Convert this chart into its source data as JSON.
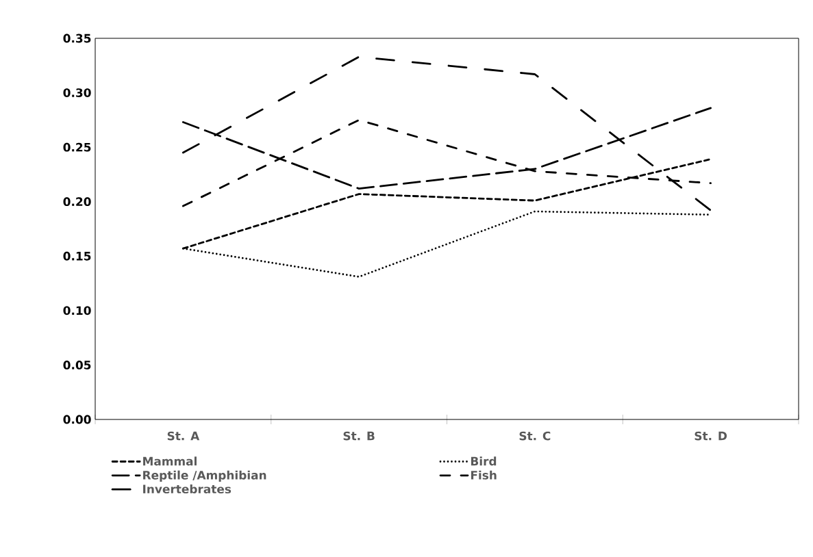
{
  "chart_data": {
    "type": "line",
    "categories": [
      "St. A",
      "St. B",
      "St. C",
      "St. D"
    ],
    "series": [
      {
        "name": "Mammal",
        "color": "#000000",
        "line_style": "dashed",
        "values": [
          0.157,
          0.207,
          0.201,
          0.239
        ]
      },
      {
        "name": "Bird",
        "color": "#000000",
        "line_style": "dotted",
        "values": [
          0.157,
          0.131,
          0.191,
          0.188
        ]
      },
      {
        "name": "Reptile /Amphibian",
        "color": "#000000",
        "line_style": "long dash",
        "values": [
          0.273,
          0.212,
          0.23,
          0.286
        ]
      },
      {
        "name": "Fish",
        "color": "#000000",
        "line_style": "dash dot",
        "values": [
          0.196,
          0.275,
          0.228,
          0.217
        ]
      },
      {
        "name": "Invertebrates",
        "color": "#000000",
        "line_style": "long dash dot dot",
        "values": [
          0.245,
          0.333,
          0.317,
          0.192
        ]
      }
    ],
    "ylim": [
      0,
      0.35
    ],
    "yticks": [
      {
        "value": 0,
        "label": "0.00"
      },
      {
        "value": 0.05,
        "label": "0.05"
      },
      {
        "value": 0.1,
        "label": "0.10"
      },
      {
        "value": 0.15,
        "label": "0.15"
      },
      {
        "value": 0.2,
        "label": "0.20"
      },
      {
        "value": 0.25,
        "label": "0.25"
      },
      {
        "value": 0.3,
        "label": "0.30"
      },
      {
        "value": 0.35,
        "label": "0.35"
      }
    ],
    "legend": "bottom"
  }
}
